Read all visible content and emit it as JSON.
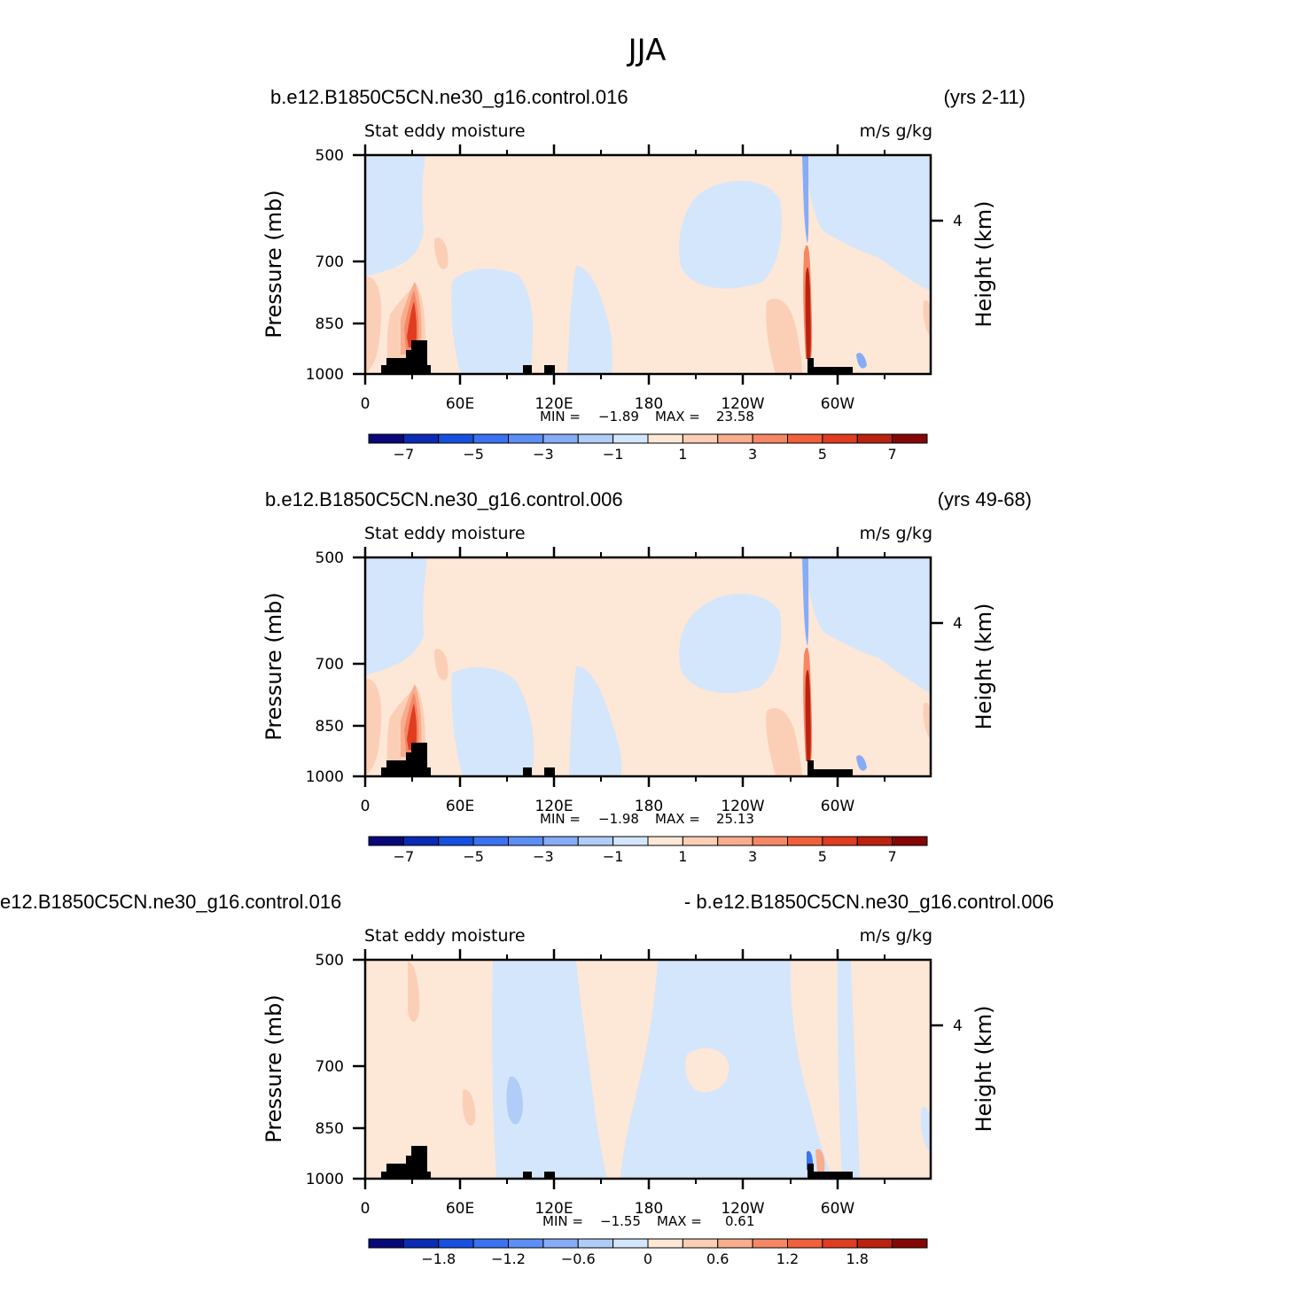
{
  "figure_title": "JJA",
  "chart_data": [
    {
      "type": "heatmap",
      "case_left": "b.e12.B1850C5CN.ne30_g16.control.016",
      "case_right": "(yrs 2-11)",
      "variable_label": "Stat  eddy  moisture",
      "units": "m/s  g/kg",
      "ylabel": "Pressure  (mb)",
      "ylabel_right": "Height  (km)",
      "y_ticks": [
        "500",
        "700",
        "850",
        "1000"
      ],
      "y_right_ticks": [
        "4"
      ],
      "x_ticks": [
        "0",
        "60E",
        "120E",
        "180",
        "120W",
        "60W"
      ],
      "min_label": "MIN  =",
      "min_value": "−1.89",
      "max_label": "MAX  =",
      "max_value": "23.58",
      "colorbar_labels": [
        "−7",
        "−5",
        "−3",
        "−1",
        "1",
        "3",
        "5",
        "7"
      ]
    },
    {
      "type": "heatmap",
      "case_left": "b.e12.B1850C5CN.ne30_g16.control.006",
      "case_right": "(yrs 49-68)",
      "variable_label": "Stat  eddy  moisture",
      "units": "m/s  g/kg",
      "ylabel": "Pressure  (mb)",
      "ylabel_right": "Height  (km)",
      "y_ticks": [
        "500",
        "700",
        "850",
        "1000"
      ],
      "y_right_ticks": [
        "4"
      ],
      "x_ticks": [
        "0",
        "60E",
        "120E",
        "180",
        "120W",
        "60W"
      ],
      "min_label": "MIN  =",
      "min_value": "−1.98",
      "max_label": "MAX  =",
      "max_value": "25.13",
      "colorbar_labels": [
        "−7",
        "−5",
        "−3",
        "−1",
        "1",
        "3",
        "5",
        "7"
      ]
    },
    {
      "type": "heatmap",
      "case_left": "e12.B1850C5CN.ne30_g16.control.016",
      "case_right": "- b.e12.B1850C5CN.ne30_g16.control.006",
      "variable_label": "Stat  eddy  moisture",
      "units": "m/s  g/kg",
      "ylabel": "Pressure  (mb)",
      "ylabel_right": "Height  (km)",
      "y_ticks": [
        "500",
        "700",
        "850",
        "1000"
      ],
      "y_right_ticks": [
        "4"
      ],
      "x_ticks": [
        "0",
        "60E",
        "120E",
        "180",
        "120W",
        "60W"
      ],
      "min_label": "MIN  =",
      "min_value": "−1.55",
      "max_label": "MAX  =",
      "max_value": "0.61",
      "colorbar_labels": [
        "−1.8",
        "−1.2",
        "−0.6",
        "0",
        "0.6",
        "1.2",
        "1.8"
      ]
    }
  ],
  "colorbar_colors": [
    "#08087a",
    "#0b2bb5",
    "#1650e0",
    "#3b72f0",
    "#5c8ff6",
    "#86acf6",
    "#b0ccf8",
    "#d4e6fb",
    "#fde7d7",
    "#fbcfb6",
    "#f8ad8d",
    "#f58765",
    "#f0603a",
    "#e03c20",
    "#bb2210",
    "#860606"
  ],
  "field_colors": {
    "neg1": "#d4e6fb",
    "neg2": "#b0ccf8",
    "neg3": "#86acf6",
    "pos1": "#fde7d7",
    "pos2": "#fbcfb6",
    "pos3": "#f8ad8d",
    "pos4": "#f58765",
    "pos5": "#e03c20",
    "pos6": "#860606",
    "terrain": "#000000"
  }
}
